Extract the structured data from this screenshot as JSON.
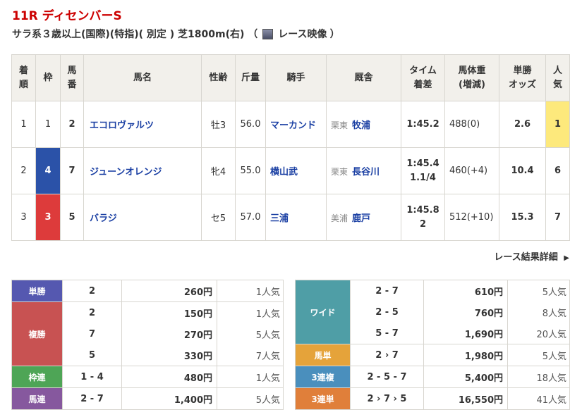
{
  "race": {
    "title": "11R ディセンバーS",
    "conditions": "サラ系３歳以上(国際)(特指)( 別定 ) 芝1800m(右) （",
    "video_label": "レース映像",
    "close_paren": "）"
  },
  "headers": [
    "着\n順",
    "枠",
    "馬\n番",
    "馬名",
    "性齢",
    "斤量",
    "騎手",
    "厩舎",
    "タイム\n着差",
    "馬体重\n(増減)",
    "単勝\nオッズ",
    "人\n気"
  ],
  "rows": [
    {
      "rank": "1",
      "waku": "1",
      "num": "2",
      "horse": "エコロヴァルツ",
      "sexage": "牡3",
      "weight": "56.0",
      "jockey": "マーカンド",
      "region": "栗東",
      "trainer": "牧浦",
      "time": "1:45.2",
      "margin": "",
      "body": "488(0)",
      "odds": "2.6",
      "pop": "1"
    },
    {
      "rank": "2",
      "waku": "4",
      "num": "7",
      "horse": "ジューンオレンジ",
      "sexage": "牝4",
      "weight": "55.0",
      "jockey": "横山武",
      "region": "栗東",
      "trainer": "長谷川",
      "time": "1:45.4",
      "margin": "1.1/4",
      "body": "460(+4)",
      "odds": "10.4",
      "pop": "6"
    },
    {
      "rank": "3",
      "waku": "3",
      "num": "5",
      "horse": "バラジ",
      "sexage": "セ5",
      "weight": "57.0",
      "jockey": "三浦",
      "region": "美浦",
      "trainer": "鹿戸",
      "time": "1:45.8",
      "margin": "2",
      "body": "512(+10)",
      "odds": "15.3",
      "pop": "7"
    }
  ],
  "detail_link": "レース結果詳細",
  "payouts_left": [
    {
      "label": "単勝",
      "color": "#5558b0",
      "entries": [
        [
          "2",
          "260円",
          "1人気"
        ]
      ]
    },
    {
      "label": "複勝",
      "color": "#c85252",
      "entries": [
        [
          "2",
          "150円",
          "1人気"
        ],
        [
          "7",
          "270円",
          "5人気"
        ],
        [
          "5",
          "330円",
          "7人気"
        ]
      ]
    },
    {
      "label": "枠連",
      "color": "#4ea556",
      "entries": [
        [
          "1 - 4",
          "480円",
          "1人気"
        ]
      ]
    },
    {
      "label": "馬連",
      "color": "#86589e",
      "entries": [
        [
          "2 - 7",
          "1,400円",
          "5人気"
        ]
      ]
    }
  ],
  "payouts_right": [
    {
      "label": "ワイド",
      "color": "#4f9ea6",
      "entries": [
        [
          "2 - 7",
          "610円",
          "5人気"
        ],
        [
          "2 - 5",
          "760円",
          "8人気"
        ],
        [
          "5 - 7",
          "1,690円",
          "20人気"
        ]
      ]
    },
    {
      "label": "馬単",
      "color": "#e5a33a",
      "entries": [
        [
          "2 › 7",
          "1,980円",
          "5人気"
        ]
      ]
    },
    {
      "label": "3連複",
      "color": "#4a8fbd",
      "entries": [
        [
          "2 - 5 - 7",
          "5,400円",
          "18人気"
        ]
      ]
    },
    {
      "label": "3連単",
      "color": "#e07f3a",
      "entries": [
        [
          "2 › 7 › 5",
          "16,550円",
          "41人気"
        ]
      ]
    }
  ]
}
